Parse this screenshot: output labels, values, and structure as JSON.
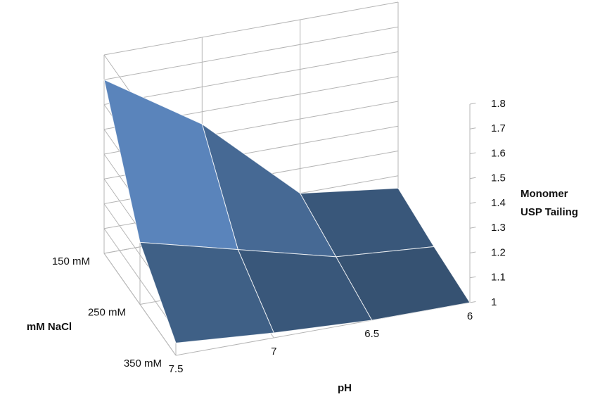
{
  "chart_data": {
    "type": "surface",
    "x_label": "pH",
    "y_label": "mM NaCl",
    "z_label": [
      "Monomer",
      "USP Tailing"
    ],
    "x": [
      7.5,
      7,
      6.5,
      6
    ],
    "xlim": [
      7.5,
      6
    ],
    "xticks": [
      7.5,
      7,
      6.5,
      6
    ],
    "y_categories": [
      "150 mM",
      "250 mM",
      "350 mM"
    ],
    "values": [
      [
        1.7,
        1.45,
        1.1,
        1.05
      ],
      [
        1.25,
        1.15,
        1.05,
        1.02
      ],
      [
        1.05,
        1.02,
        1.0,
        1.0
      ]
    ],
    "zlim": [
      1,
      1.8
    ],
    "zticks": [
      1,
      1.1,
      1.2,
      1.3,
      1.4,
      1.5,
      1.6,
      1.7,
      1.8
    ],
    "low_color": "#34506f",
    "mid_color": "#5b86bd",
    "high_color": "#dde8f4"
  }
}
